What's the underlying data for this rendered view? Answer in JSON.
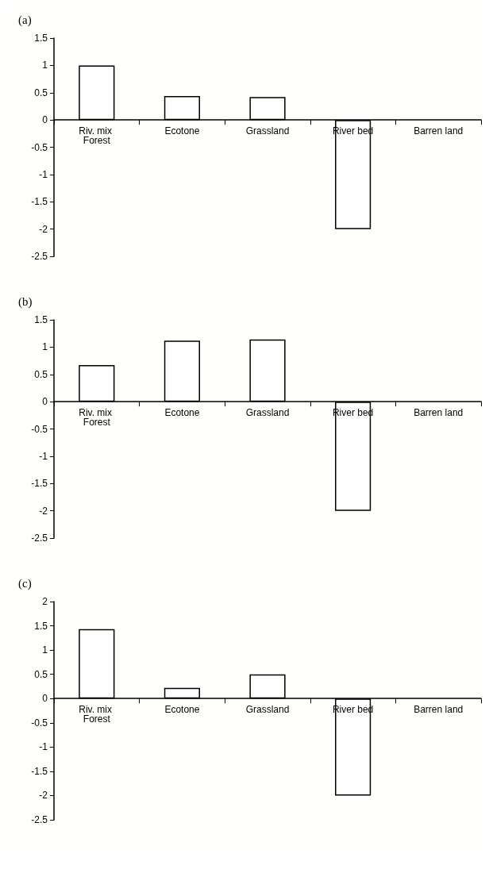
{
  "chart_data": [
    {
      "type": "bar",
      "title": "(a)",
      "categories": [
        "Riv. mix Forest",
        "Ecotone",
        "Grassland",
        "River bed",
        "Barren land"
      ],
      "values": [
        1.0,
        0.44,
        0.42,
        -2.0,
        null
      ],
      "color": "#ffffff",
      "ylim": [
        -2.5,
        1.5
      ],
      "yticks": [
        -2.5,
        -2,
        -1.5,
        -1,
        -0.5,
        0,
        0.5,
        1,
        1.5
      ]
    },
    {
      "type": "bar",
      "title": "(b)",
      "categories": [
        "Riv. mix Forest",
        "Ecotone",
        "Grassland",
        "River bed",
        "Barren land"
      ],
      "values": [
        0.67,
        1.12,
        1.14,
        -2.0,
        null
      ],
      "color": "#ffffff",
      "ylim": [
        -2.5,
        1.5
      ],
      "yticks": [
        -2.5,
        -2,
        -1.5,
        -1,
        -0.5,
        0,
        0.5,
        1,
        1.5
      ]
    },
    {
      "type": "bar",
      "title": "(c)",
      "categories": [
        "Riv. mix Forest",
        "Ecotone",
        "Grassland",
        "River bed",
        "Barren land"
      ],
      "values": [
        1.43,
        0.22,
        0.5,
        -2.0,
        null
      ],
      "color": "#ffffff",
      "ylim": [
        -2.5,
        2
      ],
      "yticks": [
        -2.5,
        -2,
        -1.5,
        -1,
        -0.5,
        0,
        0.5,
        1,
        1.5,
        2
      ]
    }
  ]
}
